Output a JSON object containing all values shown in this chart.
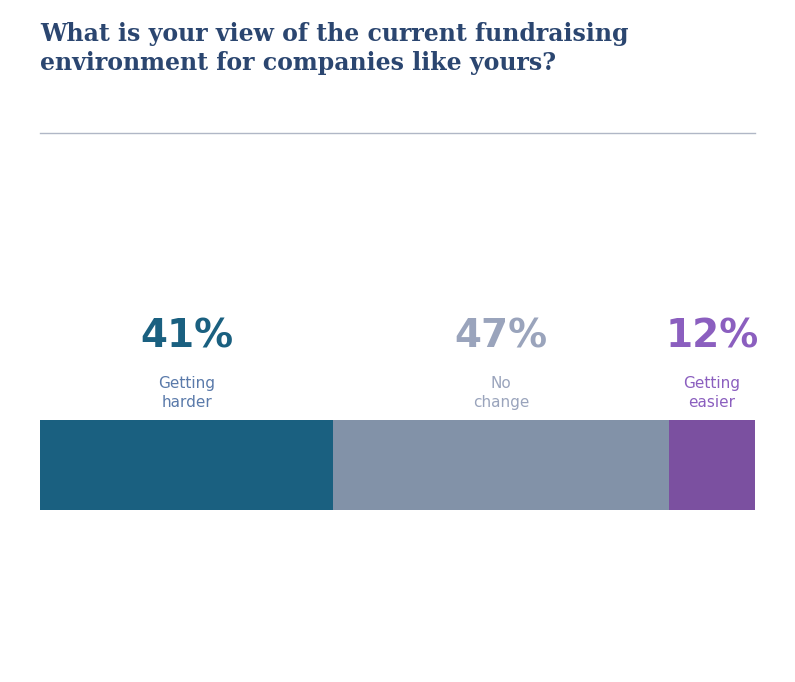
{
  "title_line1": "What is your view of the current fundraising",
  "title_line2": "environment for companies like yours?",
  "title_color": "#2b4670",
  "title_fontsize": 17,
  "categories": [
    "Getting\nharder",
    "No\nchange",
    "Getting\neasier"
  ],
  "values": [
    41,
    47,
    12
  ],
  "pct_labels": [
    "41%",
    "47%",
    "12%"
  ],
  "bar_colors": [
    "#1a6080",
    "#8292a8",
    "#7b50a0"
  ],
  "pct_colors": [
    "#1a6080",
    "#9aa4bc",
    "#8b5fbf"
  ],
  "label_colors": [
    "#5a7aaa",
    "#9aa4bc",
    "#8b5fbf"
  ],
  "background_color": "#ffffff",
  "separator_color": "#a8b0c0",
  "pct_fontsize": 28,
  "label_fontsize": 11
}
